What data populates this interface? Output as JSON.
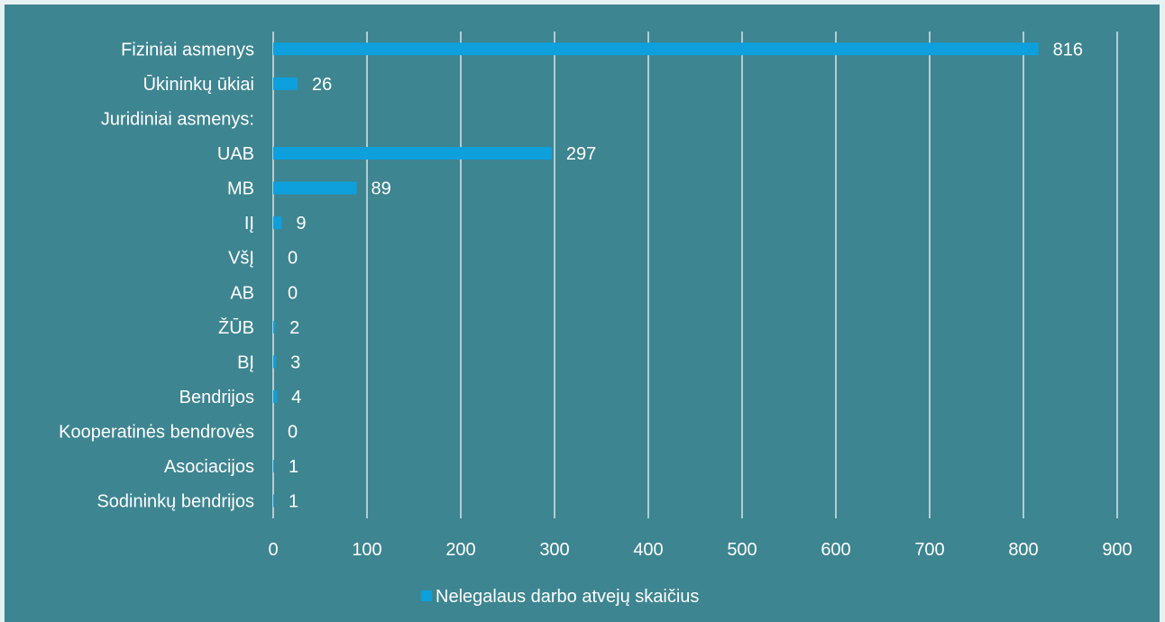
{
  "colors": {
    "background": "#3d8591",
    "bar": "#0da0dc",
    "grid": "#ffffff",
    "text": "#ffffff"
  },
  "chart_data": {
    "type": "bar",
    "orientation": "horizontal",
    "categories": [
      "Fiziniai asmenys",
      "Ūkininkų ūkiai",
      "Juridiniai asmenys:",
      "UAB",
      "MB",
      "IĮ",
      "VšĮ",
      "AB",
      "ŽŪB",
      "BĮ",
      "Bendrijos",
      "Kooperatinės bendrovės",
      "Asociacijos",
      "Sodininkų bendrijos"
    ],
    "series": [
      {
        "name": "Nelegalaus darbo atvejų skaičius",
        "values": [
          816,
          26,
          null,
          297,
          89,
          9,
          0,
          0,
          2,
          3,
          4,
          0,
          1,
          1
        ]
      }
    ],
    "xlim": [
      0,
      900
    ],
    "xticks": [
      "0",
      "100",
      "200",
      "300",
      "400",
      "500",
      "600",
      "700",
      "800",
      "900"
    ],
    "grid": true,
    "legend": "bottom"
  }
}
